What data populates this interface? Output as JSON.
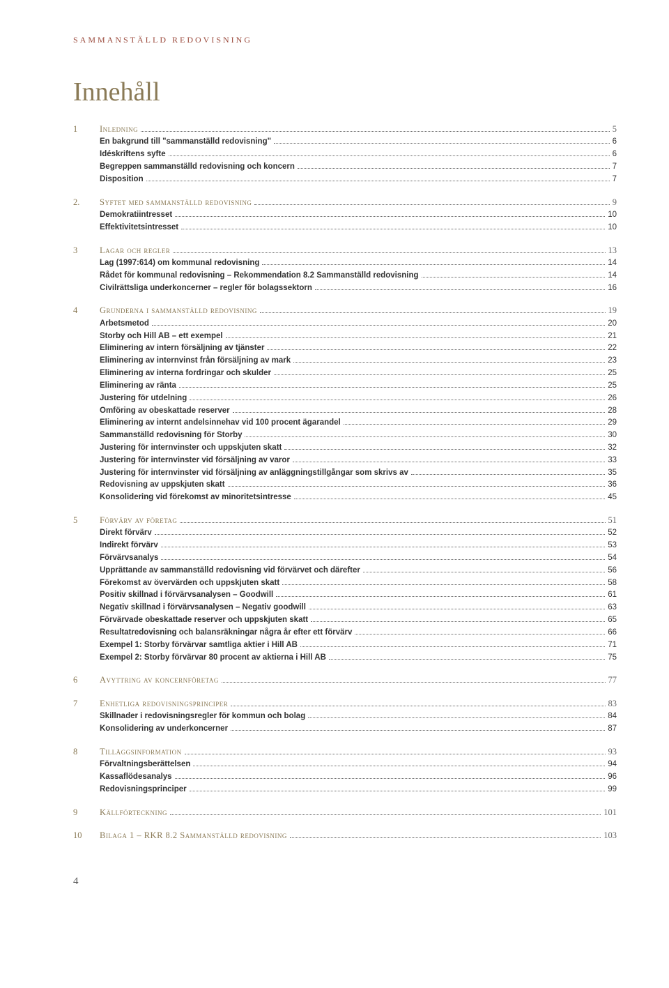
{
  "running_head": "SAMMANSTÄLLD REDOVISNING",
  "title": "Innehåll",
  "page_number": "4",
  "colors": {
    "heading_olive": "#8a7a56",
    "running_head_rust": "#9b4a3c",
    "body_text": "#333333",
    "leader": "#666666",
    "background": "#ffffff"
  },
  "typography": {
    "running_head_fontsize": 12,
    "title_fontsize": 38,
    "row_fontsize": 12.5,
    "entry_fontsize": 11.5
  },
  "sections": [
    {
      "num": "1",
      "title": "Inledning",
      "page": "5",
      "entries": [
        {
          "label": "En bakgrund till \"sammanställd redovisning\"",
          "page": "6"
        },
        {
          "label": "Idéskriftens syfte",
          "page": "6"
        },
        {
          "label": "Begreppen sammanställd redovisning och koncern",
          "page": "7"
        },
        {
          "label": "Disposition",
          "page": "7"
        }
      ]
    },
    {
      "num": "2.",
      "title": "Syftet med sammanställd redovisning",
      "page": "9",
      "entries": [
        {
          "label": "Demokratiintresset",
          "page": "10"
        },
        {
          "label": "Effektivitetsintresset",
          "page": "10"
        }
      ]
    },
    {
      "num": "3",
      "title": "Lagar och regler",
      "page": "13",
      "entries": [
        {
          "label": "Lag (1997:614) om kommunal redovisning",
          "page": "14"
        },
        {
          "label": "Rådet för kommunal redovisning – Rekommendation 8.2 Sammanställd redovisning",
          "page": "14"
        },
        {
          "label": "Civilrättsliga underkoncerner – regler för bolagssektorn",
          "page": "16"
        }
      ]
    },
    {
      "num": "4",
      "title": "Grunderna i sammanställd redovisning",
      "page": "19",
      "entries": [
        {
          "label": "Arbetsmetod",
          "page": "20"
        },
        {
          "label": "Storby och Hill AB – ett exempel",
          "page": "21"
        },
        {
          "label": "Eliminering av intern försäljning av tjänster",
          "page": "22"
        },
        {
          "label": "Eliminering av internvinst från försäljning av mark",
          "page": "23"
        },
        {
          "label": "Eliminering av interna fordringar och skulder",
          "page": "25"
        },
        {
          "label": "Eliminering av ränta",
          "page": "25"
        },
        {
          "label": "Justering för utdelning",
          "page": "26"
        },
        {
          "label": "Omföring av obeskattade reserver",
          "page": "28"
        },
        {
          "label": "Eliminering av internt andelsinnehav vid 100 procent ägarandel",
          "page": "29"
        },
        {
          "label": "Sammanställd redovisning för Storby",
          "page": "30"
        },
        {
          "label": "Justering för internvinster och uppskjuten skatt",
          "page": "32"
        },
        {
          "label": "Justering för internvinster vid försäljning av varor",
          "page": "33"
        },
        {
          "label": "Justering för internvinster vid försäljning av anläggningstillgångar som skrivs av",
          "page": "35"
        },
        {
          "label": "Redovisning av uppskjuten skatt",
          "page": "36"
        },
        {
          "label": "Konsolidering vid förekomst av minoritetsintresse",
          "page": "45"
        }
      ]
    },
    {
      "num": "5",
      "title": "Förvärv av företag",
      "page": "51",
      "entries": [
        {
          "label": "Direkt förvärv",
          "page": "52"
        },
        {
          "label": "Indirekt förvärv",
          "page": "53"
        },
        {
          "label": "Förvärvsanalys",
          "page": "54"
        },
        {
          "label": "Upprättande av sammanställd redovisning vid förvärvet och därefter",
          "page": "56"
        },
        {
          "label": "Förekomst av övervärden och uppskjuten skatt",
          "page": "58"
        },
        {
          "label": "Positiv skillnad i förvärvsanalysen – Goodwill",
          "page": "61"
        },
        {
          "label": "Negativ skillnad i förvärvsanalysen – Negativ goodwill",
          "page": "63"
        },
        {
          "label": "Förvärvade obeskattade reserver och uppskjuten skatt",
          "page": "65"
        },
        {
          "label": "Resultatredovisning och balansräkningar några år efter ett förvärv",
          "page": "66"
        },
        {
          "label": "Exempel 1: Storby förvärvar samtliga aktier i Hill AB",
          "page": "71"
        },
        {
          "label": "Exempel 2: Storby förvärvar 80 procent av aktierna i Hill AB",
          "page": "75"
        }
      ]
    },
    {
      "num": "6",
      "title": "Avyttring av koncernföretag",
      "page": "77",
      "entries": []
    },
    {
      "num": "7",
      "title": "Enhetliga redovisningsprinciper",
      "page": "83",
      "entries": [
        {
          "label": "Skillnader i redovisningsregler för kommun och bolag",
          "page": "84"
        },
        {
          "label": "Konsolidering av underkoncerner",
          "page": "87"
        }
      ]
    },
    {
      "num": "8",
      "title": "Tilläggsinformation",
      "page": "93",
      "entries": [
        {
          "label": "Förvaltningsberättelsen",
          "page": "94"
        },
        {
          "label": "Kassaflödesanalys",
          "page": "96"
        },
        {
          "label": "Redovisningsprinciper",
          "page": "99"
        }
      ]
    },
    {
      "num": "9",
      "title": "Källförteckning",
      "page": "101",
      "entries": []
    },
    {
      "num": "10",
      "title": "Bilaga 1 – RKR 8.2 Sammanställd redovisning",
      "page": "103",
      "entries": []
    }
  ]
}
